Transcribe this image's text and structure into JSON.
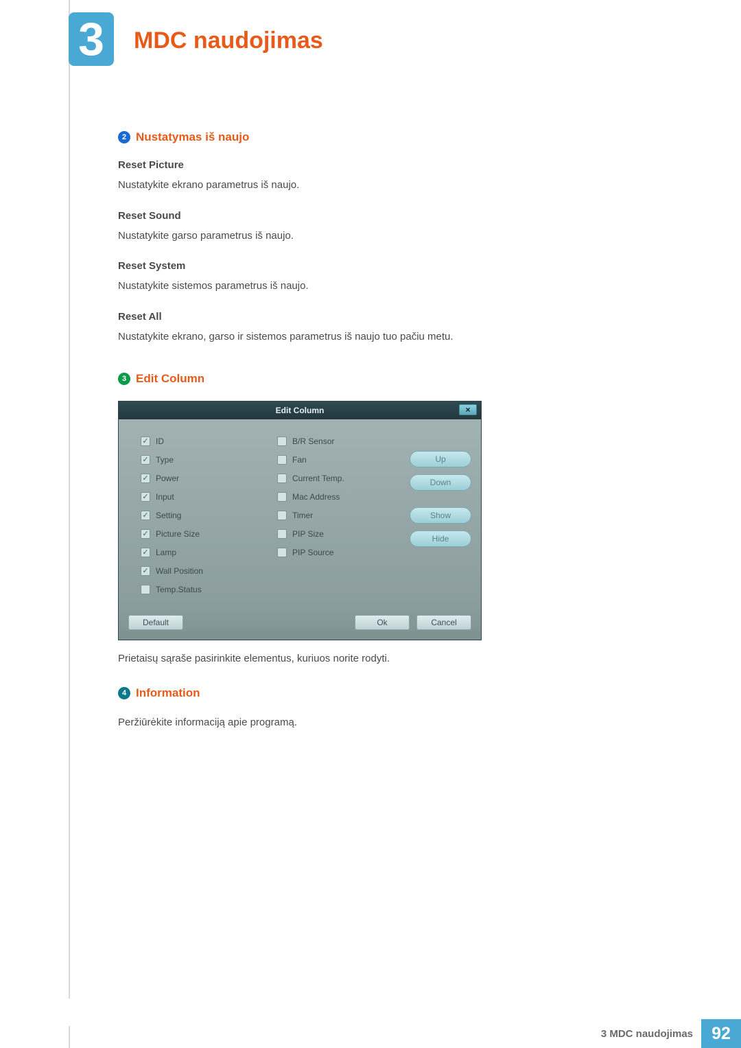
{
  "colors": {
    "accent_blue": "#4aa8d4",
    "title_orange": "#e85a1a",
    "badge2": "#1a6ad4",
    "badge3": "#0a9a4a",
    "badge4": "#08788a",
    "text_gray": "#4a4a4a",
    "dialog_titlebar": "#2a4048",
    "dialog_body": "#96a6a6"
  },
  "chapter": {
    "number": "3",
    "title": "MDC naudojimas"
  },
  "section2": {
    "badge": "2",
    "title": "Nustatymas iš naujo",
    "items": [
      {
        "head": "Reset Picture",
        "text": "Nustatykite ekrano parametrus iš naujo."
      },
      {
        "head": "Reset Sound",
        "text": "Nustatykite garso parametrus iš naujo."
      },
      {
        "head": "Reset System",
        "text": "Nustatykite sistemos parametrus iš naujo."
      },
      {
        "head": "Reset All",
        "text": "Nustatykite ekrano, garso ir sistemos parametrus iš naujo tuo pačiu metu."
      }
    ]
  },
  "section3": {
    "badge": "3",
    "title": "Edit Column",
    "after_text": "Prietaisų sąraše pasirinkite elementus, kuriuos norite rodyti."
  },
  "dialog": {
    "title": "Edit Column",
    "close": "×",
    "col1": [
      {
        "label": "ID",
        "checked": true
      },
      {
        "label": "Type",
        "checked": true
      },
      {
        "label": "Power",
        "checked": true
      },
      {
        "label": "Input",
        "checked": true
      },
      {
        "label": "Setting",
        "checked": true
      },
      {
        "label": "Picture Size",
        "checked": true
      },
      {
        "label": "Lamp",
        "checked": true
      },
      {
        "label": "Wall Position",
        "checked": true
      },
      {
        "label": "Temp.Status",
        "checked": false
      }
    ],
    "col2": [
      {
        "label": "B/R Sensor",
        "checked": false
      },
      {
        "label": "Fan",
        "checked": false
      },
      {
        "label": "Current Temp.",
        "checked": false
      },
      {
        "label": "Mac Address",
        "checked": false
      },
      {
        "label": "Timer",
        "checked": false
      },
      {
        "label": "PIP Size",
        "checked": false
      },
      {
        "label": "PIP Source",
        "checked": false
      }
    ],
    "side_buttons": {
      "up": "Up",
      "down": "Down",
      "show": "Show",
      "hide": "Hide"
    },
    "footer": {
      "default": "Default",
      "ok": "Ok",
      "cancel": "Cancel"
    }
  },
  "section4": {
    "badge": "4",
    "title": "Information",
    "text": "Peržiūrėkite informaciją apie programą."
  },
  "footer": {
    "text": "3 MDC naudojimas",
    "page": "92"
  }
}
